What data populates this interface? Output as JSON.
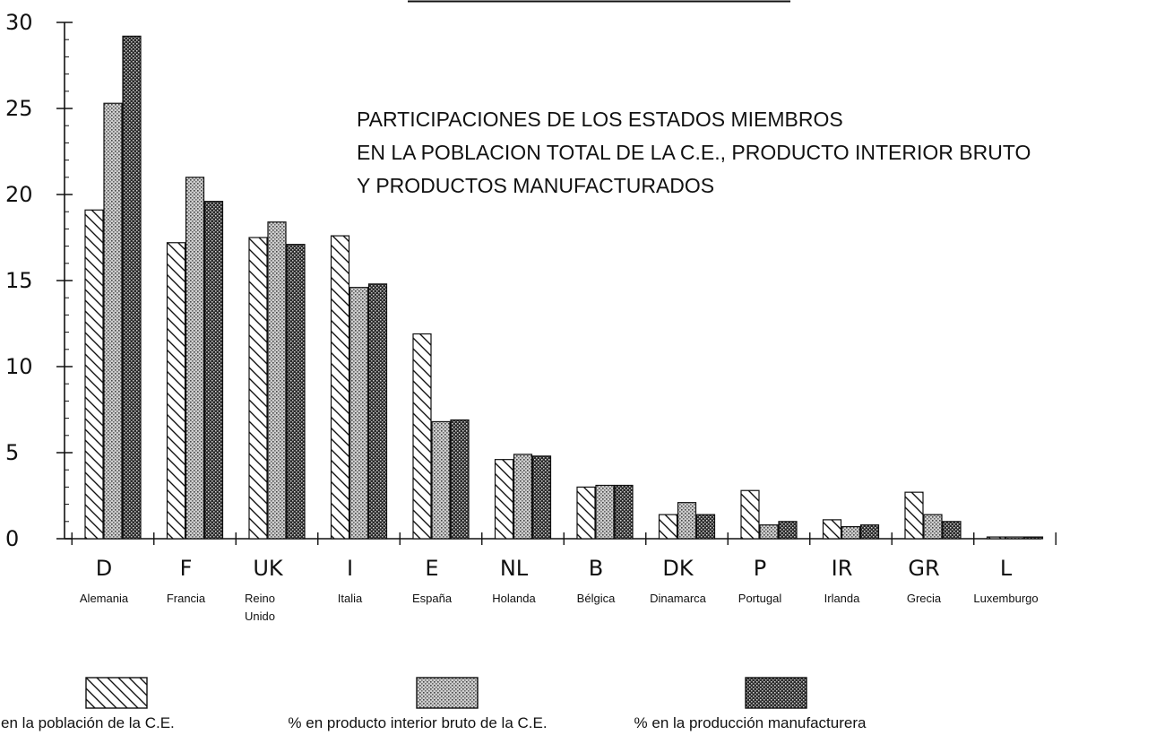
{
  "chart_data": {
    "type": "bar",
    "title_lines": [
      "PARTICIPACIONES DE LOS ESTADOS MIEMBROS",
      "EN LA POBLACION TOTAL DE LA C.E., PRODUCTO INTERIOR BRUTO",
      "Y PRODUCTOS MANUFACTURADOS"
    ],
    "ylim": [
      0,
      30
    ],
    "yticks": [
      0,
      5,
      10,
      15,
      20,
      25,
      30
    ],
    "categories": [
      {
        "code": "D",
        "name_lines": [
          "Alemania"
        ]
      },
      {
        "code": "F",
        "name_lines": [
          "Francia"
        ]
      },
      {
        "code": "UK",
        "name_lines": [
          "Reino",
          "Unido"
        ]
      },
      {
        "code": "I",
        "name_lines": [
          "Italia"
        ]
      },
      {
        "code": "E",
        "name_lines": [
          "España"
        ]
      },
      {
        "code": "NL",
        "name_lines": [
          "Holanda"
        ]
      },
      {
        "code": "B",
        "name_lines": [
          "Bélgica"
        ]
      },
      {
        "code": "DK",
        "name_lines": [
          "Dinamarca"
        ]
      },
      {
        "code": "P",
        "name_lines": [
          "Portugal"
        ]
      },
      {
        "code": "IR",
        "name_lines": [
          "Irlanda"
        ]
      },
      {
        "code": "GR",
        "name_lines": [
          "Grecia"
        ]
      },
      {
        "code": "L",
        "name_lines": [
          "Luxemburgo"
        ]
      }
    ],
    "series": [
      {
        "name": "% en la población de la C.E.",
        "pattern": "hatch",
        "values": [
          19.1,
          17.2,
          17.5,
          17.6,
          11.9,
          4.6,
          3.0,
          1.4,
          2.8,
          1.1,
          2.7,
          0.1
        ]
      },
      {
        "name": "% en producto interior bruto de la C.E.",
        "pattern": "light-dots",
        "values": [
          25.3,
          21.0,
          18.4,
          14.6,
          6.8,
          4.9,
          3.1,
          2.1,
          0.8,
          0.7,
          1.4,
          0.1
        ]
      },
      {
        "name": "% en la producción manufacturera",
        "pattern": "dark-dots",
        "values": [
          29.2,
          19.6,
          17.1,
          14.8,
          6.9,
          4.8,
          3.1,
          1.4,
          1.0,
          0.8,
          1.0,
          0.1
        ]
      }
    ],
    "grid": false,
    "legend_position": "bottom"
  }
}
